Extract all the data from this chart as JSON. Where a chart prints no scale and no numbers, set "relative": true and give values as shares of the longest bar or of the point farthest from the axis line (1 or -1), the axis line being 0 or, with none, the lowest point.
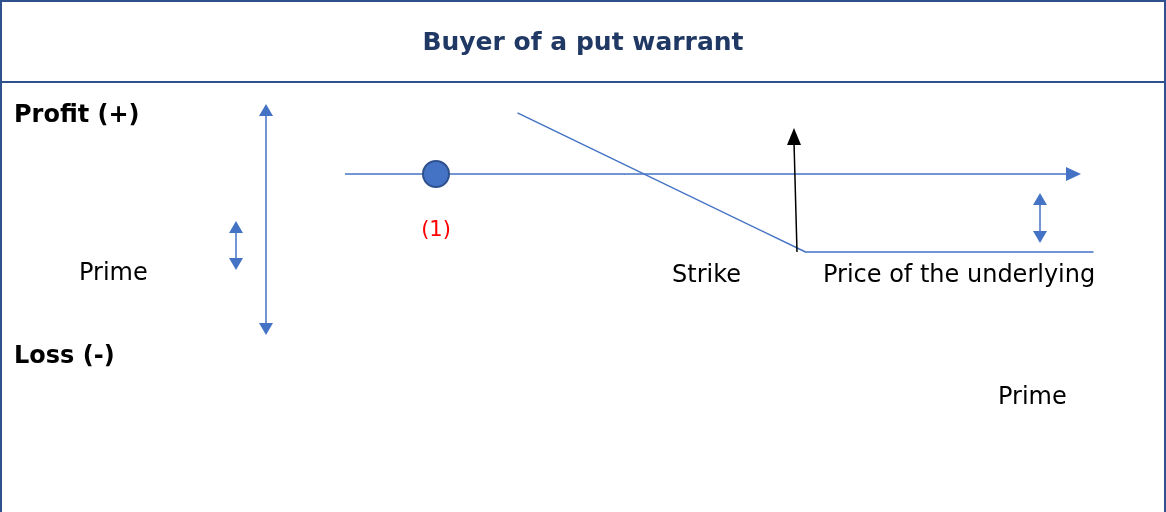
{
  "chart_data": {
    "type": "line",
    "title": "Buyer of a put warrant",
    "relative": true,
    "categories": [
      null,
      null,
      null
    ],
    "series": [
      {
        "color": "#4472c4",
        "values": [
          0.78,
          -1,
          -1
        ]
      }
    ],
    "ref_lines": [
      {
        "axis": "y",
        "value": 0,
        "color": "#4472c4"
      }
    ],
    "annotations": [
      "Profit (+)",
      "Loss (-)",
      "Prime",
      "(1)",
      "Strike",
      "Price of the underlying",
      "Prime"
    ]
  }
}
